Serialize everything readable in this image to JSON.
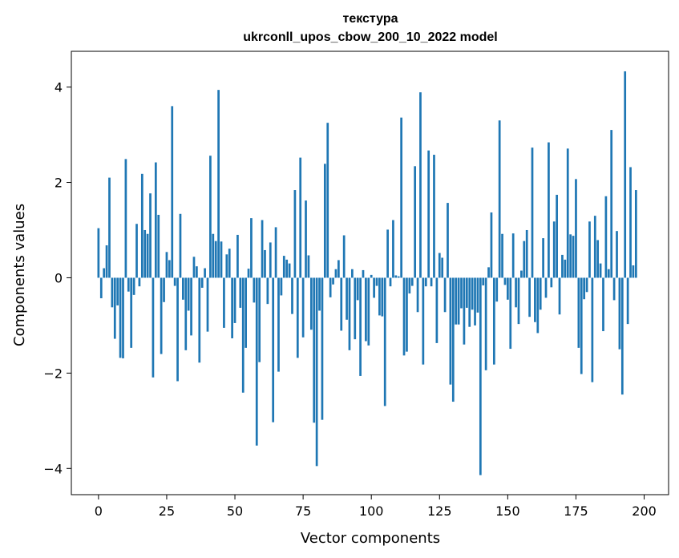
{
  "chart_data": {
    "type": "bar",
    "title_line1": "текстура",
    "title_line2": "ukrconll_upos_cbow_200_10_2022 model",
    "xlabel": "Vector components",
    "ylabel": "Components values",
    "xlim": [
      -9.95,
      208.95
    ],
    "ylim": [
      -4.55,
      4.75
    ],
    "xticks": [
      0,
      25,
      50,
      75,
      100,
      125,
      150,
      175,
      200
    ],
    "yticks": [
      -4,
      -2,
      0,
      2,
      4
    ],
    "ytick_labels": [
      "−4",
      "−2",
      "0",
      "2",
      "4"
    ],
    "bar_color": "#1f77b4",
    "grid": false,
    "values": [
      1.04,
      -0.43,
      0.2,
      0.68,
      2.1,
      -0.62,
      -1.28,
      -0.58,
      -1.68,
      -1.69,
      2.49,
      -0.29,
      -1.47,
      -0.36,
      1.13,
      -0.18,
      2.18,
      1.0,
      0.92,
      1.77,
      -2.09,
      2.42,
      1.32,
      -1.6,
      -0.51,
      0.54,
      0.37,
      3.6,
      -0.17,
      -2.17,
      1.34,
      -0.46,
      -1.52,
      -0.69,
      -1.21,
      0.44,
      0.24,
      -1.78,
      -0.21,
      0.2,
      -1.13,
      2.56,
      0.92,
      0.77,
      3.94,
      0.76,
      -1.05,
      0.49,
      0.61,
      -1.27,
      -0.95,
      0.9,
      -0.63,
      -2.41,
      -1.47,
      0.19,
      1.25,
      -0.52,
      -3.52,
      -1.77,
      1.21,
      0.58,
      -0.55,
      0.74,
      -3.03,
      1.06,
      -1.97,
      -0.37,
      0.46,
      0.38,
      0.3,
      -0.76,
      1.84,
      -1.68,
      2.52,
      -1.25,
      1.62,
      0.47,
      -1.09,
      -3.04,
      -3.95,
      -0.69,
      -2.98,
      2.39,
      3.25,
      -0.41,
      -0.14,
      0.18,
      0.37,
      -1.11,
      0.89,
      -0.88,
      -1.52,
      0.18,
      -1.29,
      -0.47,
      -2.06,
      0.16,
      -1.33,
      -1.42,
      0.06,
      -0.42,
      -0.17,
      -0.79,
      -0.81,
      -2.69,
      1.01,
      -0.18,
      1.21,
      0.05,
      0.03,
      3.36,
      -1.63,
      -1.55,
      -0.33,
      -0.17,
      2.34,
      -0.72,
      3.89,
      -1.82,
      -0.18,
      2.67,
      -0.18,
      2.58,
      -1.37,
      0.52,
      0.42,
      -0.72,
      1.57,
      -2.24,
      -2.6,
      -0.98,
      -0.98,
      -0.64,
      -1.4,
      -0.63,
      -1.03,
      -0.67,
      -1.0,
      -0.73,
      -4.14,
      -0.16,
      -1.94,
      0.22,
      1.37,
      -1.82,
      -0.5,
      3.3,
      0.92,
      -0.15,
      -0.46,
      -1.49,
      0.93,
      -0.62,
      -0.97,
      0.15,
      0.77,
      1.0,
      -0.82,
      2.73,
      -0.93,
      -1.16,
      -0.67,
      0.83,
      -0.42,
      2.84,
      -0.2,
      1.18,
      1.74,
      -0.77,
      0.48,
      0.38,
      2.71,
      0.91,
      0.88,
      2.07,
      -1.47,
      -2.02,
      -0.45,
      -0.3,
      1.18,
      -2.19,
      1.3,
      0.79,
      0.3,
      -1.12,
      1.71,
      0.18,
      3.1,
      -0.47,
      0.98,
      -1.5,
      -2.45,
      4.33,
      -0.97,
      2.32,
      0.26,
      1.84
    ]
  }
}
